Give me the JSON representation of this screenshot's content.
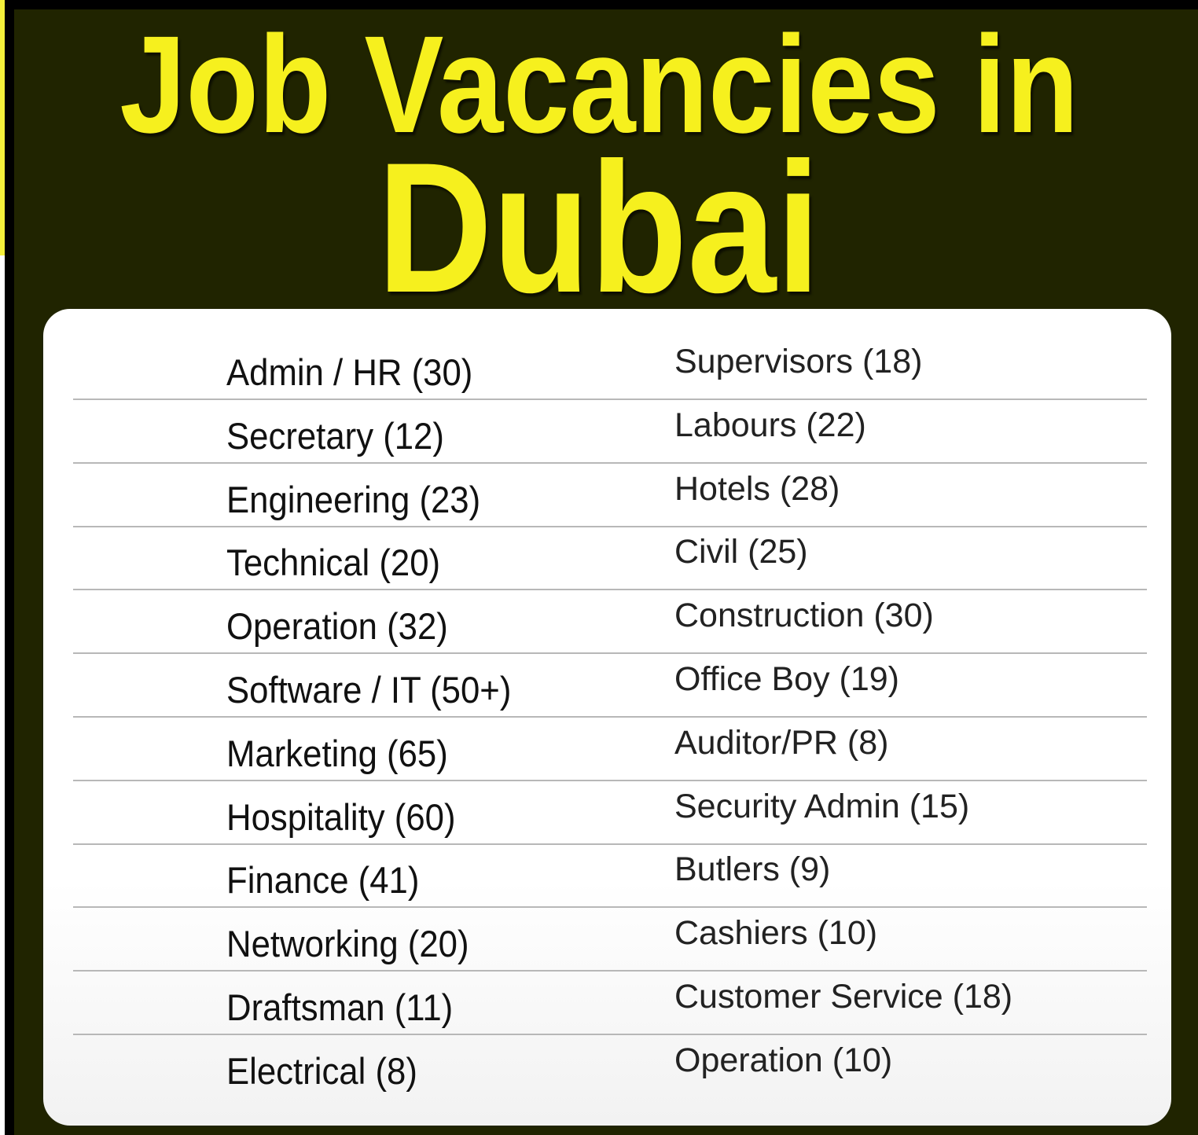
{
  "title": {
    "line1": "Job Vacancies in",
    "line2": "Dubai"
  },
  "colors": {
    "background": "#202400",
    "title": "#f6f01e",
    "panel": "#ffffff"
  },
  "rows": [
    {
      "left": "Admin / HR (30)",
      "right": "Supervisors (18)"
    },
    {
      "left": "Secretary (12)",
      "right": "Labours (22)"
    },
    {
      "left": "Engineering (23)",
      "right": "Hotels (28)"
    },
    {
      "left": "Technical (20)",
      "right": "Civil (25)"
    },
    {
      "left": "Operation (32)",
      "right": "Construction (30)"
    },
    {
      "left": "Software / IT (50+)",
      "right": "Office Boy (19)"
    },
    {
      "left": "Marketing (65)",
      "right": "Auditor/PR (8)"
    },
    {
      "left": "Hospitality (60)",
      "right": "Security Admin (15)"
    },
    {
      "left": "Finance (41)",
      "right": "Butlers (9)"
    },
    {
      "left": "Networking (20)",
      "right": "Cashiers  (10)"
    },
    {
      "left": "Draftsman (11)",
      "right": "Customer Service (18)"
    },
    {
      "left": "Electrical (8)",
      "right": "Operation (10)"
    }
  ]
}
